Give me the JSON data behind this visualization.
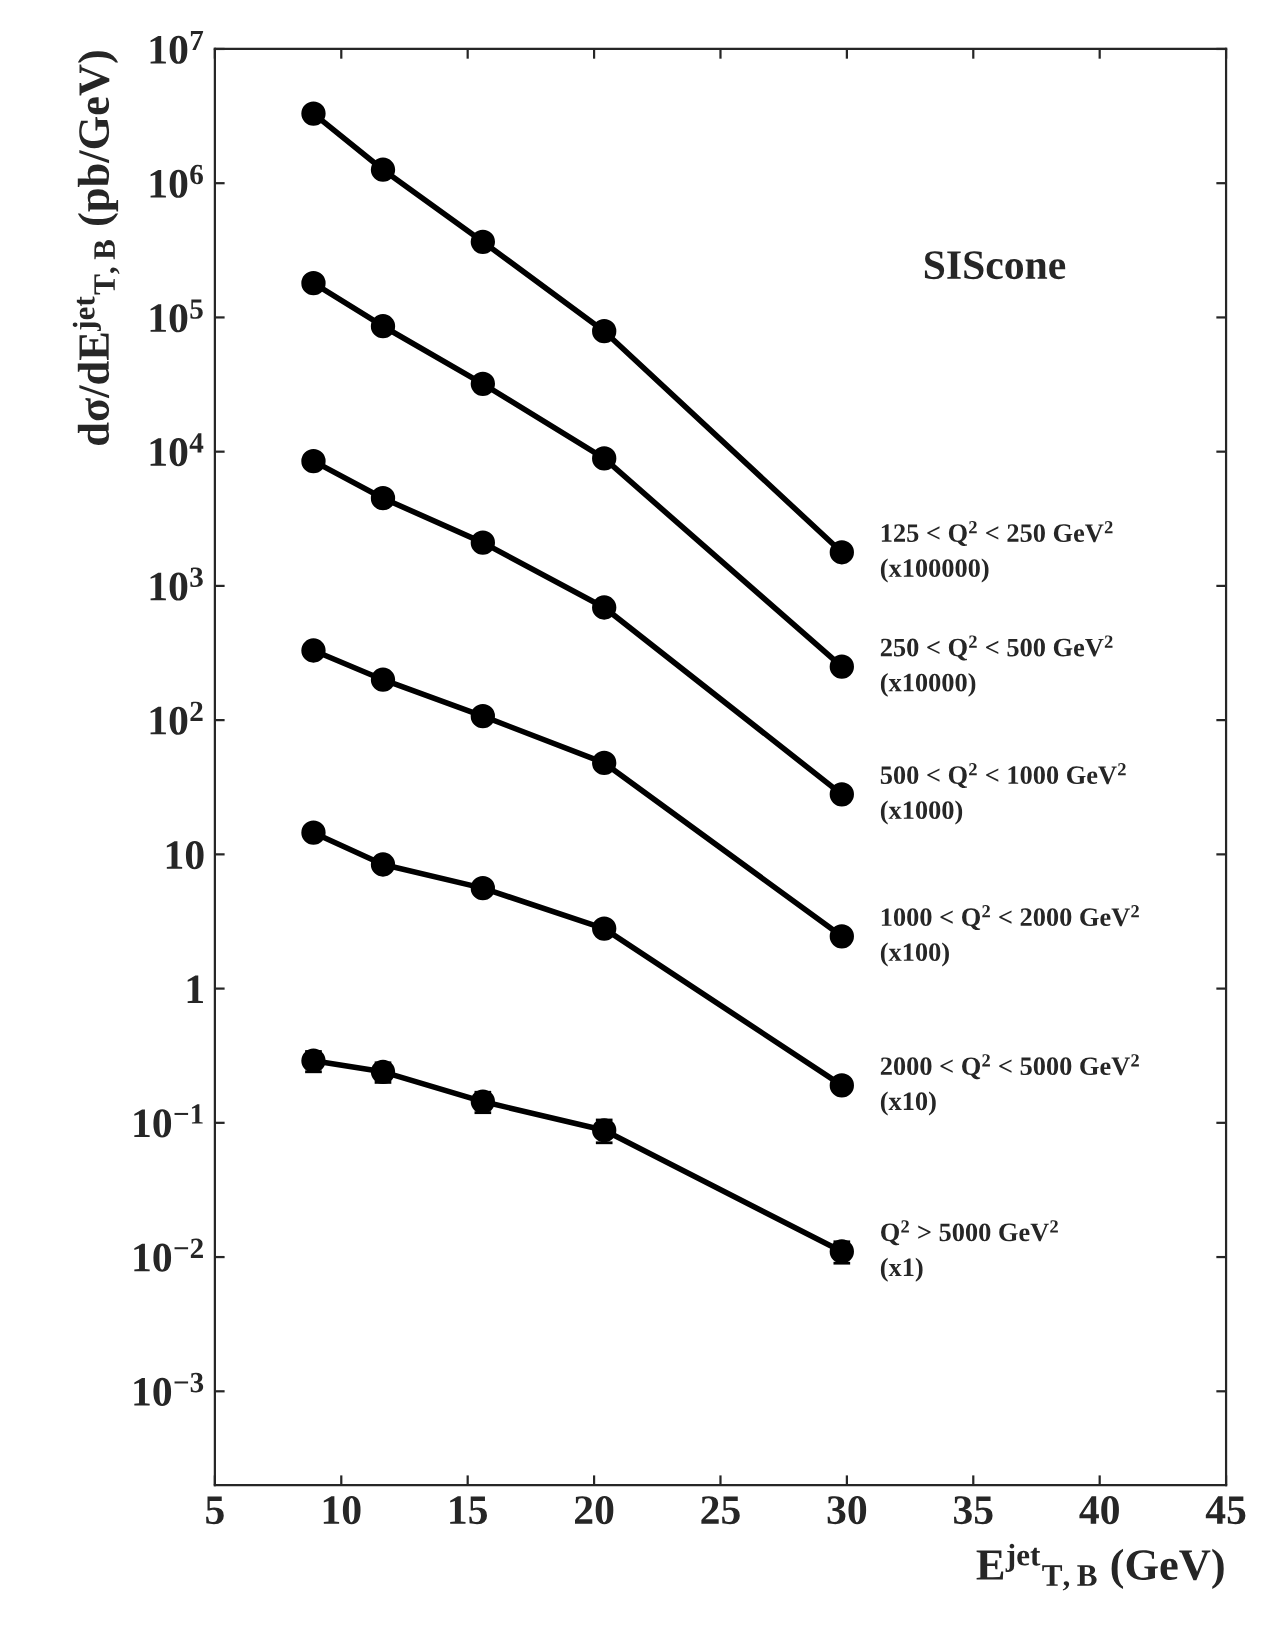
{
  "chart_data": {
    "type": "line",
    "xlabel": "E$^{jet}$$_{T,B}$ (GeV)",
    "ylabel": "dσ/dE$^{jet}$$_{T,B}$ (pb/GeV)",
    "log": "y",
    "xlim": [
      5,
      45
    ],
    "xticks": [
      5,
      10,
      15,
      20,
      25,
      30,
      35,
      40,
      45
    ],
    "ylim": [
      0.0002,
      10000000
    ],
    "yticks": [
      {
        "value": 0.001,
        "label": "10$^{−3}$"
      },
      {
        "value": 0.01,
        "label": "10$^{−2}$"
      },
      {
        "value": 0.1,
        "label": "10$^{−1}$"
      },
      1,
      10,
      {
        "value": 100,
        "label": "10$^{2}$"
      },
      {
        "value": 1000,
        "label": "10$^{3}$"
      },
      {
        "value": 10000,
        "label": "10$^{4}$"
      },
      {
        "value": 100000,
        "label": "10$^{5}$"
      },
      {
        "value": 1000000,
        "label": "10$^{6}$"
      },
      {
        "value": 10000000,
        "label": "10$^{7}$"
      }
    ],
    "x": [
      8.9,
      11.65,
      15.6,
      20.4,
      29.8
    ],
    "marker": "circle",
    "line_style": "solid",
    "grid": false,
    "legend": false,
    "annotations": [
      "SIScone"
    ],
    "series": [
      {
        "name": "125 < Q$^{2}$ < 250 GeV$^{2}$\n(x100000)",
        "color": "#000000",
        "values": [
          3300000,
          1260000,
          366000,
          79000,
          1780
        ]
      },
      {
        "name": "250 < Q$^{2}$ < 500 GeV$^{2}$\n(x10000)",
        "color": "#000000",
        "values": [
          180000,
          86000,
          32000,
          8900,
          250
        ]
      },
      {
        "name": "500 < Q$^{2}$ < 1000 GeV$^{2}$\n(x1000)",
        "color": "#000000",
        "values": [
          8500,
          4500,
          2100,
          690,
          28
        ]
      },
      {
        "name": "1000 < Q$^{2}$ < 2000 GeV$^{2}$\n(x100)",
        "color": "#000000",
        "values": [
          330,
          200,
          107,
          48,
          2.45
        ]
      },
      {
        "name": "2000 < Q$^{2}$ < 5000 GeV$^{2}$\n(x10)",
        "color": "#000000",
        "values": [
          14.5,
          8.4,
          5.6,
          2.8,
          0.19
        ]
      },
      {
        "name": "Q$^{2}$ > 5000 GeV$^{2}$\n(x1)",
        "color": "#000000",
        "values": [
          0.29,
          0.24,
          0.144,
          0.088,
          0.011
        ],
        "errors": [
          0.05,
          0.04,
          0.025,
          0.017,
          0.002
        ]
      }
    ]
  }
}
